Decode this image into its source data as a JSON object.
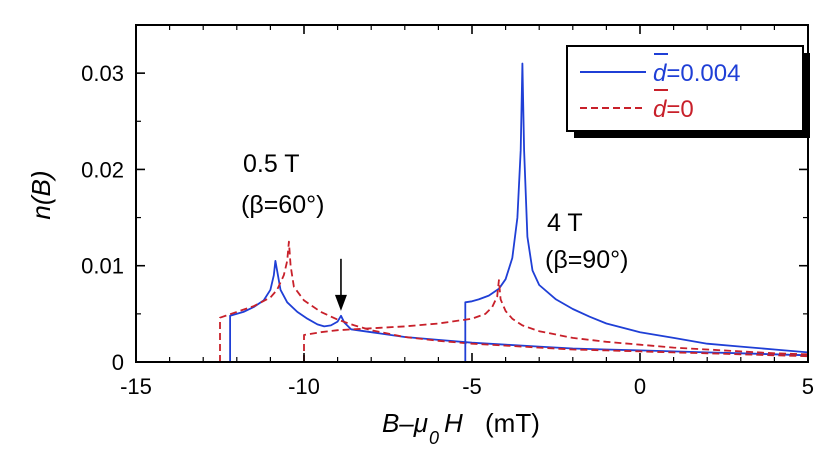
{
  "chart_data": {
    "type": "line",
    "title": "",
    "xlabel": {
      "main": "B–μ",
      "sub": "0",
      "tail": "H",
      "unit": "(mT)"
    },
    "ylabel": "n(B)",
    "xlim": [
      -15,
      5
    ],
    "ylim": [
      0,
      0.035
    ],
    "xticks": [
      -15,
      -10,
      -5,
      0,
      5
    ],
    "xtick_labels": [
      "-15",
      "-10",
      "-5",
      "0",
      "5"
    ],
    "yticks": [
      0,
      0.01,
      0.02,
      0.03
    ],
    "ytick_labels": [
      "0",
      "0.01",
      "0.02",
      "0.03"
    ],
    "grid": false,
    "legend_position": "top-right",
    "legend": {
      "solid": {
        "prefix": "d",
        "suffix": "=0.004",
        "color": "#1f3fd6"
      },
      "dashed": {
        "prefix": "d",
        "suffix": "=0",
        "color": "#c8202a"
      }
    },
    "annotations": {
      "low_field_label": "0.5 T",
      "low_field_angle": "(β=60°)",
      "high_field_label": "4 T",
      "high_field_angle": "(β=90°)"
    },
    "arrow_target": {
      "x": -8.9,
      "y": 0.0049
    },
    "series": [
      {
        "name": "d=0.004, 0.5 T",
        "style": "solid",
        "color": "#1f3fd6",
        "points": [
          [
            -12.2,
            0
          ],
          [
            -12.2,
            0.0048
          ],
          [
            -11.8,
            0.0052
          ],
          [
            -11.5,
            0.0057
          ],
          [
            -11.2,
            0.0064
          ],
          [
            -11.0,
            0.0075
          ],
          [
            -10.9,
            0.009
          ],
          [
            -10.85,
            0.0105
          ],
          [
            -10.8,
            0.0095
          ],
          [
            -10.7,
            0.0075
          ],
          [
            -10.5,
            0.0062
          ],
          [
            -10.2,
            0.0052
          ],
          [
            -9.9,
            0.0045
          ],
          [
            -9.6,
            0.0039
          ],
          [
            -9.4,
            0.0037
          ],
          [
            -9.2,
            0.0038
          ],
          [
            -9.0,
            0.0042
          ],
          [
            -8.9,
            0.0048
          ],
          [
            -8.8,
            0.0041
          ],
          [
            -8.6,
            0.0034
          ],
          [
            -8.0,
            0.0031
          ],
          [
            -7.0,
            0.0026
          ],
          [
            -6.0,
            0.0023
          ],
          [
            -5.0,
            0.002
          ],
          [
            -4.0,
            0.0018
          ],
          [
            -3.0,
            0.0016
          ],
          [
            -2.0,
            0.0014
          ],
          [
            -1.0,
            0.0013
          ],
          [
            0.0,
            0.0012
          ],
          [
            1.0,
            0.0011
          ],
          [
            2.0,
            0.001
          ],
          [
            3.0,
            0.0009
          ],
          [
            4.0,
            0.0008
          ],
          [
            5.0,
            0.0007
          ]
        ]
      },
      {
        "name": "d=0, 0.5 T",
        "style": "dashed",
        "color": "#c8202a",
        "points": [
          [
            -12.5,
            0
          ],
          [
            -12.5,
            0.0046
          ],
          [
            -12.0,
            0.0052
          ],
          [
            -11.5,
            0.0058
          ],
          [
            -11.0,
            0.0067
          ],
          [
            -10.8,
            0.0075
          ],
          [
            -10.6,
            0.009
          ],
          [
            -10.5,
            0.0105
          ],
          [
            -10.45,
            0.0125
          ],
          [
            -10.4,
            0.01
          ],
          [
            -10.3,
            0.0078
          ],
          [
            -10.0,
            0.0064
          ],
          [
            -9.5,
            0.0052
          ],
          [
            -9.0,
            0.0044
          ],
          [
            -8.5,
            0.0038
          ],
          [
            -8.0,
            0.0033
          ],
          [
            -7.0,
            0.0026
          ],
          [
            -6.0,
            0.0022
          ],
          [
            -5.0,
            0.0019
          ],
          [
            -4.0,
            0.0017
          ],
          [
            -3.0,
            0.0015
          ],
          [
            -2.0,
            0.0013
          ],
          [
            -1.0,
            0.0012
          ],
          [
            0.0,
            0.0011
          ],
          [
            1.0,
            0.001
          ],
          [
            2.0,
            0.0009
          ],
          [
            3.0,
            0.0008
          ],
          [
            4.0,
            0.0007
          ],
          [
            5.0,
            0.0006
          ]
        ]
      },
      {
        "name": "d=0.004, 4 T",
        "style": "solid",
        "color": "#1f3fd6",
        "points": [
          [
            -5.2,
            0
          ],
          [
            -5.2,
            0.0062
          ],
          [
            -5.0,
            0.0063
          ],
          [
            -4.8,
            0.0065
          ],
          [
            -4.5,
            0.0069
          ],
          [
            -4.2,
            0.0076
          ],
          [
            -4.0,
            0.0086
          ],
          [
            -3.8,
            0.0108
          ],
          [
            -3.65,
            0.015
          ],
          [
            -3.55,
            0.022
          ],
          [
            -3.5,
            0.031
          ],
          [
            -3.45,
            0.022
          ],
          [
            -3.35,
            0.013
          ],
          [
            -3.2,
            0.0095
          ],
          [
            -3.0,
            0.008
          ],
          [
            -2.5,
            0.0065
          ],
          [
            -2.0,
            0.0055
          ],
          [
            -1.5,
            0.0047
          ],
          [
            -1.0,
            0.004
          ],
          [
            0.0,
            0.0031
          ],
          [
            1.0,
            0.0025
          ],
          [
            2.0,
            0.0019
          ],
          [
            3.0,
            0.0016
          ],
          [
            4.0,
            0.0013
          ],
          [
            5.0,
            0.001
          ]
        ]
      },
      {
        "name": "d=0, 4 T",
        "style": "dashed",
        "color": "#c8202a",
        "points": [
          [
            -10.0,
            0
          ],
          [
            -10.0,
            0.0028
          ],
          [
            -9.5,
            0.0031
          ],
          [
            -9.0,
            0.0033
          ],
          [
            -8.0,
            0.0035
          ],
          [
            -7.0,
            0.0037
          ],
          [
            -6.0,
            0.004
          ],
          [
            -5.0,
            0.0045
          ],
          [
            -4.6,
            0.005
          ],
          [
            -4.4,
            0.0057
          ],
          [
            -4.25,
            0.0068
          ],
          [
            -4.2,
            0.0085
          ],
          [
            -4.15,
            0.0065
          ],
          [
            -4.0,
            0.0053
          ],
          [
            -3.8,
            0.0045
          ],
          [
            -3.5,
            0.0038
          ],
          [
            -3.0,
            0.0032
          ],
          [
            -2.0,
            0.0025
          ],
          [
            -1.0,
            0.0021
          ],
          [
            0.0,
            0.0018
          ],
          [
            1.0,
            0.0015
          ],
          [
            2.0,
            0.0013
          ],
          [
            3.0,
            0.0011
          ],
          [
            4.0,
            0.0009
          ],
          [
            5.0,
            0.0008
          ]
        ]
      }
    ]
  }
}
